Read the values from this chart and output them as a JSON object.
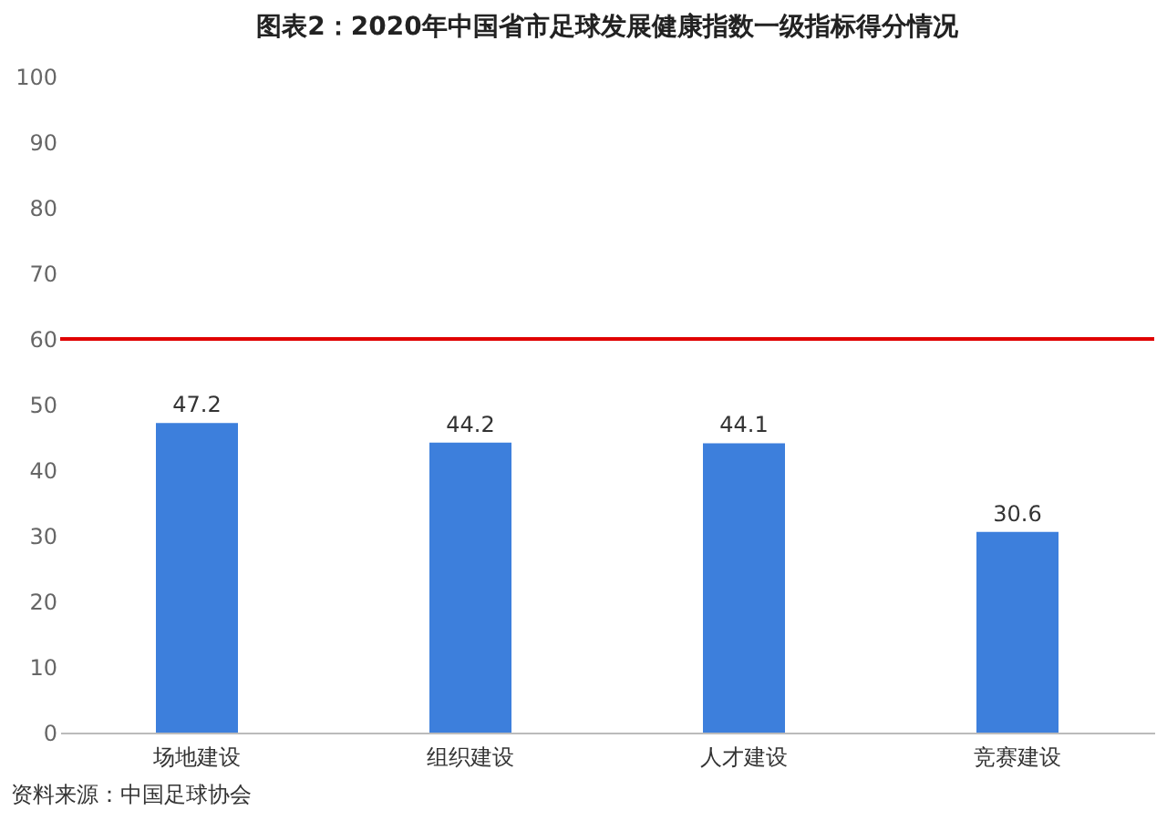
{
  "chart_data": {
    "type": "bar",
    "title": "图表2：2020年中国省市足球发展健康指数一级指标得分情况",
    "categories": [
      "场地建设",
      "组织建设",
      "人才建设",
      "竞赛建设"
    ],
    "values": [
      47.2,
      44.2,
      44.1,
      30.6
    ],
    "color": "#3d7fdc",
    "ylim": [
      0,
      100
    ],
    "yticks": [
      0,
      10,
      20,
      30,
      40,
      50,
      60,
      70,
      80,
      90,
      100
    ],
    "grid": false,
    "data_labels": true,
    "ref_lines": [
      {
        "axis": "y",
        "value": 60,
        "color": "#e00000"
      }
    ],
    "annotations": [
      "资料来源：中国足球协会"
    ]
  }
}
